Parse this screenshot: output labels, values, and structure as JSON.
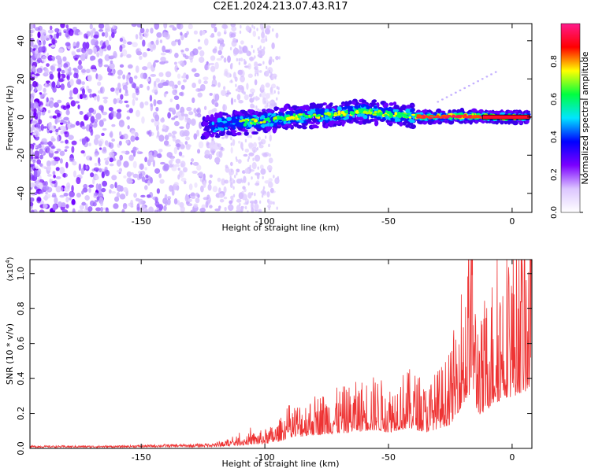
{
  "title": "C2E1.2024.213.07.43.R17",
  "chart_data": [
    {
      "type": "heatmap",
      "xlabel": "Height of straight line (km)",
      "ylabel": "Frequency (Hz)",
      "xlim": [
        -195,
        8
      ],
      "ylim": [
        -50,
        49
      ],
      "xticks": [
        -150,
        -100,
        -50,
        0
      ],
      "xtick_labels": [
        "-150",
        "-100",
        "-50",
        "0"
      ],
      "yticks": [
        -40,
        -20,
        0,
        20,
        40
      ],
      "ytick_labels": [
        "-40",
        "-20",
        "0",
        "20",
        "40"
      ],
      "colorbar": {
        "label": "Normalized spectral amplitude",
        "range": [
          0,
          1
        ],
        "ticks": [
          0,
          0.2,
          0.4,
          0.6,
          0.8
        ],
        "tick_labels": [
          "0.0",
          "0.2",
          "0.4",
          "0.6",
          "0.8"
        ],
        "colormap": [
          "#ffffff",
          "#dcc6ff",
          "#7b00ff",
          "#0000ff",
          "#00e5ff",
          "#00ff40",
          "#ffff00",
          "#ff0000",
          "#ff1a8c"
        ]
      },
      "signal_track": [
        {
          "x": -125,
          "y": -5
        },
        {
          "x": -110,
          "y": -3
        },
        {
          "x": -100,
          "y": -2
        },
        {
          "x": -90,
          "y": 0
        },
        {
          "x": -75,
          "y": 1
        },
        {
          "x": -60,
          "y": 3
        },
        {
          "x": -45,
          "y": 1
        },
        {
          "x": -35,
          "y": 0
        },
        {
          "x": -20,
          "y": 0.5
        },
        {
          "x": -10,
          "y": 0
        },
        {
          "x": 7,
          "y": 0
        }
      ],
      "background_noise_extent_x": [
        -195,
        -95
      ]
    },
    {
      "type": "line",
      "xlabel": "Height of straight line (km)",
      "ylabel": "SNR (10 * v/v)",
      "yscale_label": "(x10",
      "yscale_exp": "4",
      "yscale_close": ")",
      "xlim": [
        -195,
        8
      ],
      "ylim": [
        0,
        1.08
      ],
      "xticks": [
        -150,
        -100,
        -50,
        0
      ],
      "xtick_labels": [
        "-150",
        "-100",
        "-50",
        "0"
      ],
      "yticks": [
        0,
        0.2,
        0.4,
        0.6,
        0.8,
        1.0
      ],
      "ytick_labels": [
        "0.0",
        "0.2",
        "0.4",
        "0.6",
        "0.8",
        "1.0"
      ],
      "color": "#ee3333",
      "series": [
        {
          "x": [
            -195,
            -180,
            -160,
            -140,
            -130,
            -120,
            -115,
            -110,
            -105,
            -100,
            -95,
            -90,
            -85,
            -80,
            -75,
            -70,
            -65,
            -60,
            -55,
            -50,
            -45,
            -40,
            -35,
            -30,
            -25,
            -22,
            -20,
            -18,
            -16,
            -15,
            -12,
            -10,
            -8,
            -5,
            -2,
            0,
            3,
            5,
            8
          ],
          "values": [
            0.01,
            0.01,
            0.01,
            0.015,
            0.015,
            0.02,
            0.03,
            0.04,
            0.05,
            0.06,
            0.08,
            0.14,
            0.15,
            0.17,
            0.18,
            0.19,
            0.2,
            0.22,
            0.23,
            0.2,
            0.24,
            0.25,
            0.2,
            0.25,
            0.3,
            0.45,
            0.55,
            0.6,
            0.85,
            0.5,
            0.4,
            0.5,
            0.55,
            0.6,
            0.65,
            0.65,
            0.7,
            0.72,
            0.75
          ]
        }
      ]
    }
  ]
}
